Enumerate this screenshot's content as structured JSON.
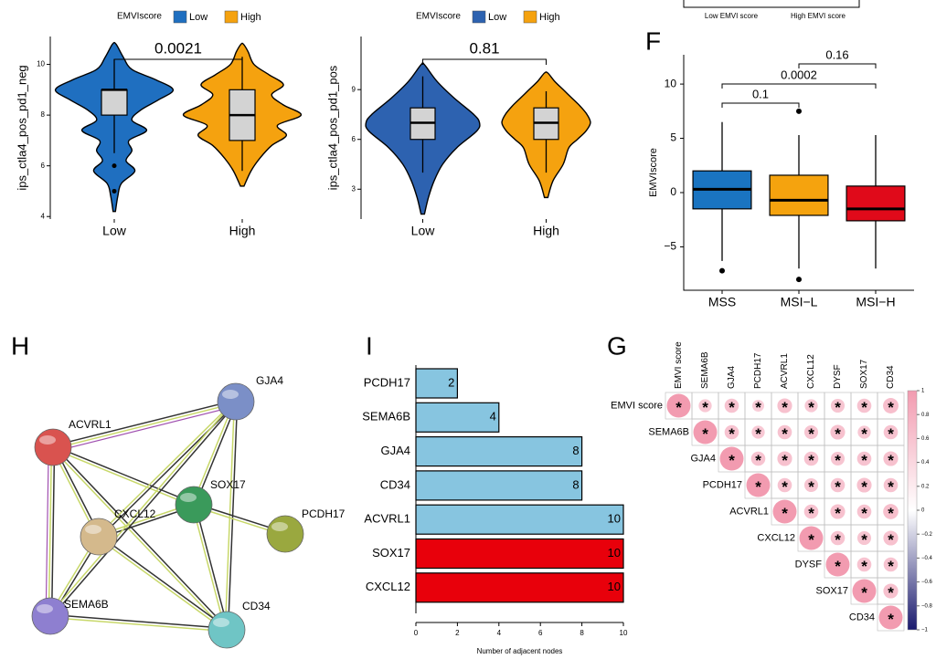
{
  "chart_data": [
    {
      "type": "violin",
      "legend_title": "EMVIscore",
      "ylabel": "ips_ctla4_pos_pd1_neg",
      "annotation": "0.0021",
      "categories": [
        "Low",
        "High"
      ],
      "ylim": [
        3.9,
        11.1
      ],
      "yticks": [
        4,
        6,
        8,
        10
      ],
      "series": [
        {
          "name": "Low",
          "color": "#1f6fc0",
          "box": {
            "whislo": 6.5,
            "q1": 8,
            "median": 9,
            "q3": 9,
            "whishi": 10.2
          },
          "outliers": [
            6,
            5
          ],
          "density": {
            "y": [
              4.2,
              4.8,
              5.3,
              5.8,
              6.2,
              6.6,
              7,
              7.4,
              7.8,
              8.2,
              8.6,
              9,
              9.4,
              9.8,
              10.3,
              10.8
            ],
            "width": [
              0.02,
              0.06,
              0.12,
              0.35,
              0.2,
              0.3,
              0.25,
              0.55,
              0.3,
              0.45,
              0.75,
              1,
              0.7,
              0.3,
              0.15,
              0.03
            ]
          }
        },
        {
          "name": "High",
          "color": "#f5a20f",
          "box": {
            "whislo": 5.8,
            "q1": 7,
            "median": 8,
            "q3": 9,
            "whishi": 10.3
          },
          "outliers": [],
          "density": {
            "y": [
              5.2,
              5.8,
              6.3,
              6.8,
              7.2,
              7.6,
              8,
              8.4,
              8.8,
              9.2,
              9.6,
              10,
              10.5,
              10.8
            ],
            "width": [
              0.03,
              0.15,
              0.3,
              0.5,
              0.75,
              0.6,
              1,
              0.7,
              0.5,
              0.7,
              0.45,
              0.2,
              0.1,
              0.02
            ]
          }
        }
      ]
    },
    {
      "type": "violin",
      "legend_title": "EMVIscore",
      "ylabel": "ips_ctla4_pos_pd1_pos",
      "annotation": "0.81",
      "categories": [
        "Low",
        "High"
      ],
      "ylim": [
        1.2,
        12.2
      ],
      "yticks": [
        3,
        6,
        9
      ],
      "series": [
        {
          "name": "Low",
          "color": "#2d62b0",
          "box": {
            "whislo": 4.0,
            "q1": 6.0,
            "median": 7,
            "q3": 7.9,
            "whishi": 9.8
          },
          "outliers": [],
          "density": {
            "y": [
              1.5,
              2.5,
              3.5,
              4.5,
              5.5,
              6.5,
              7,
              7.5,
              8.5,
              9.5,
              10.5
            ],
            "width": [
              0.03,
              0.1,
              0.2,
              0.35,
              0.6,
              0.95,
              1,
              0.9,
              0.55,
              0.25,
              0.03
            ]
          }
        },
        {
          "name": "High",
          "color": "#f5a20f",
          "box": {
            "whislo": 4.0,
            "q1": 6.0,
            "median": 7,
            "q3": 7.9,
            "whishi": 8.9
          },
          "outliers": [],
          "density": {
            "y": [
              2.5,
              3.5,
              4.5,
              5.5,
              6,
              6.5,
              7,
              7.5,
              8,
              8.5,
              9,
              9.5,
              10
            ],
            "width": [
              0.03,
              0.12,
              0.3,
              0.4,
              0.55,
              0.7,
              0.78,
              0.72,
              0.6,
              0.45,
              0.3,
              0.15,
              0.03
            ]
          }
        }
      ]
    },
    {
      "type": "cropped",
      "categories": [
        "Low EMVI score",
        "High EMVI score"
      ]
    },
    {
      "type": "box",
      "panel": "F",
      "ylabel": "EMVIscore",
      "categories": [
        "MSS",
        "MSI−L",
        "MSI−H"
      ],
      "ylim": [
        -9,
        12.7
      ],
      "yticks": [
        {
          "value": -5,
          "label": "−5"
        },
        0,
        5,
        10
      ],
      "annotations": [
        "0.16",
        "0.0002",
        "0.1"
      ],
      "series": [
        {
          "color": "#1a74c1",
          "box": {
            "whislo": -6.3,
            "q1": -1.5,
            "median": 0.3,
            "q3": 2,
            "whishi": 6.5
          },
          "outliers": [
            -7.2
          ]
        },
        {
          "color": "#f5a30e",
          "box": {
            "whislo": -7,
            "q1": -2.1,
            "median": -0.7,
            "q3": 1.6,
            "whishi": 5.3
          },
          "outliers": [
            7.5,
            -8.0
          ]
        },
        {
          "color": "#e00a1a",
          "box": {
            "whislo": -7,
            "q1": -2.6,
            "median": -1.5,
            "q3": 0.6,
            "whishi": 5.3
          },
          "outliers": []
        }
      ]
    },
    {
      "type": "network",
      "panel": "H",
      "nodes": [
        {
          "label": "GJA4",
          "color": "#7b8fc7"
        },
        {
          "label": "ACVRL1",
          "color": "#d9534f"
        },
        {
          "label": "SOX17",
          "color": "#3a9a5b"
        },
        {
          "label": "PCDH17",
          "color": "#9aa83f"
        },
        {
          "label": "CXCL12",
          "color": "#d4b98c"
        },
        {
          "label": "SEMA6B",
          "color": "#8e7fd0"
        },
        {
          "label": "CD34",
          "color": "#6fc5c5"
        }
      ],
      "edges": [
        [
          1,
          0
        ],
        [
          1,
          2
        ],
        [
          1,
          4
        ],
        [
          1,
          5
        ],
        [
          1,
          6
        ],
        [
          0,
          2
        ],
        [
          0,
          4
        ],
        [
          0,
          6
        ],
        [
          2,
          4
        ],
        [
          2,
          3
        ],
        [
          2,
          6
        ],
        [
          4,
          6
        ],
        [
          4,
          5
        ],
        [
          5,
          6
        ],
        [
          0,
          5
        ]
      ]
    },
    {
      "type": "barh",
      "panel": "I",
      "xlabel": "Number of adjacent nodes",
      "categories": [
        "PCDH17",
        "SEMA6B",
        "GJA4",
        "CD34",
        "ACVRL1",
        "SOX17",
        "CXCL12"
      ],
      "values": [
        2,
        4,
        8,
        8,
        10,
        10,
        10
      ],
      "colors": [
        "#87c5e0",
        "#87c5e0",
        "#87c5e0",
        "#87c5e0",
        "#87c5e0",
        "#e8000b",
        "#e8000b"
      ],
      "xlim": [
        0,
        10
      ],
      "xticks": [
        0,
        2,
        4,
        6,
        8,
        10
      ]
    },
    {
      "type": "corrplot",
      "panel": "G",
      "labels": [
        "EMVI score",
        "SEMA6B",
        "GJA4",
        "PCDH17",
        "ACVRL1",
        "CXCL12",
        "DYSF",
        "SOX17",
        "CD34"
      ],
      "colormap": [
        "#1a1a6e",
        "#ffffff",
        "#f29bb0"
      ],
      "values": [
        [
          1,
          0.55,
          0.6,
          0.5,
          0.62,
          0.55,
          0.58,
          0.6,
          0.65
        ],
        [
          null,
          1,
          0.6,
          0.55,
          0.6,
          0.58,
          0.62,
          0.55,
          0.6
        ],
        [
          null,
          null,
          1,
          0.6,
          0.62,
          0.6,
          0.58,
          0.6,
          0.62
        ],
        [
          null,
          null,
          null,
          1,
          0.6,
          0.58,
          0.6,
          0.62,
          0.6
        ],
        [
          null,
          null,
          null,
          null,
          1,
          0.6,
          0.62,
          0.6,
          0.64
        ],
        [
          null,
          null,
          null,
          null,
          null,
          1,
          0.6,
          0.58,
          0.62
        ],
        [
          null,
          null,
          null,
          null,
          null,
          null,
          1,
          0.6,
          0.6
        ],
        [
          null,
          null,
          null,
          null,
          null,
          null,
          null,
          1,
          0.62
        ],
        [
          null,
          null,
          null,
          null,
          null,
          null,
          null,
          null,
          1
        ]
      ],
      "stars": [
        [
          "*",
          "*",
          "*",
          "*",
          "*",
          "*",
          "*",
          "*",
          "*"
        ],
        [
          null,
          "*",
          "*",
          "*",
          "*",
          "*",
          "*",
          "*",
          "*"
        ],
        [
          null,
          null,
          "*",
          "*",
          "*",
          "*",
          "*",
          "*",
          "*"
        ],
        [
          null,
          null,
          null,
          "*",
          "*",
          "*",
          "*",
          "*",
          "*"
        ],
        [
          null,
          null,
          null,
          null,
          "*",
          "*",
          "*",
          "*",
          "*"
        ],
        [
          null,
          null,
          null,
          null,
          null,
          "*",
          "*",
          "*",
          "*"
        ],
        [
          null,
          null,
          null,
          null,
          null,
          null,
          "*",
          "*",
          "*"
        ],
        [
          null,
          null,
          null,
          null,
          null,
          null,
          null,
          "*",
          "*"
        ],
        [
          null,
          null,
          null,
          null,
          null,
          null,
          null,
          null,
          "*"
        ]
      ],
      "cbar_ticks": [
        1,
        0.8,
        0.6,
        0.4,
        0.2,
        0,
        {
          "value": -0.2,
          "label": "−0.2"
        },
        {
          "value": -0.4,
          "label": "−0.4"
        },
        {
          "value": -0.6,
          "label": "−0.6"
        },
        {
          "value": -0.8,
          "label": "−0.8"
        },
        {
          "value": -1,
          "label": "−1"
        }
      ]
    }
  ]
}
